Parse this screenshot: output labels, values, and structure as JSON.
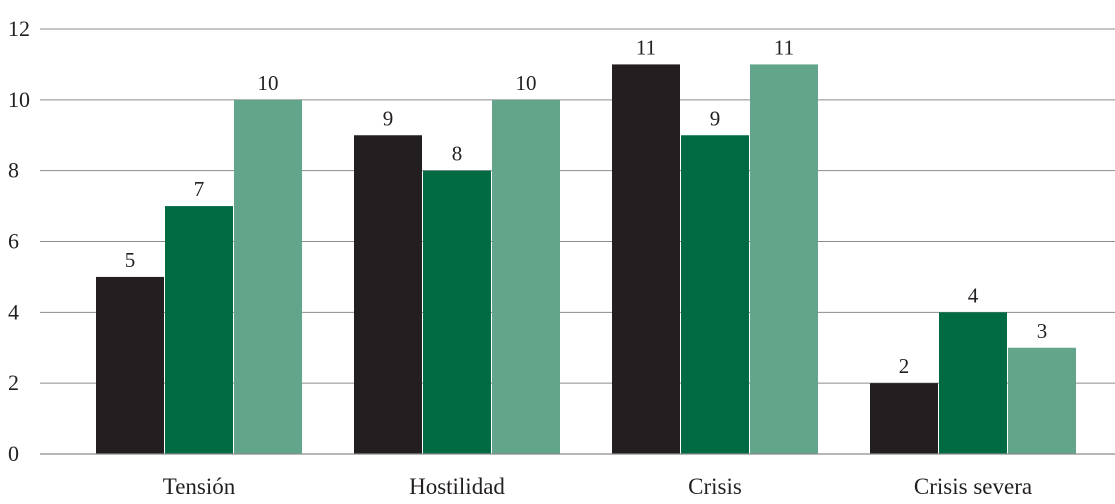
{
  "chart_data": {
    "type": "bar",
    "categories": [
      "Tensión",
      "Hostilidad",
      "Crisis",
      "Crisis severa"
    ],
    "series": [
      {
        "values": [
          5,
          9,
          11,
          2
        ],
        "color": "#231f20"
      },
      {
        "values": [
          7,
          8,
          9,
          4
        ],
        "color": "#006b42"
      },
      {
        "values": [
          10,
          10,
          11,
          3
        ],
        "color": "#63a58a"
      }
    ],
    "ylim": [
      0,
      12
    ],
    "yticks": [
      0,
      2,
      4,
      6,
      8,
      10,
      12
    ],
    "grid": true,
    "data_labels": true
  }
}
